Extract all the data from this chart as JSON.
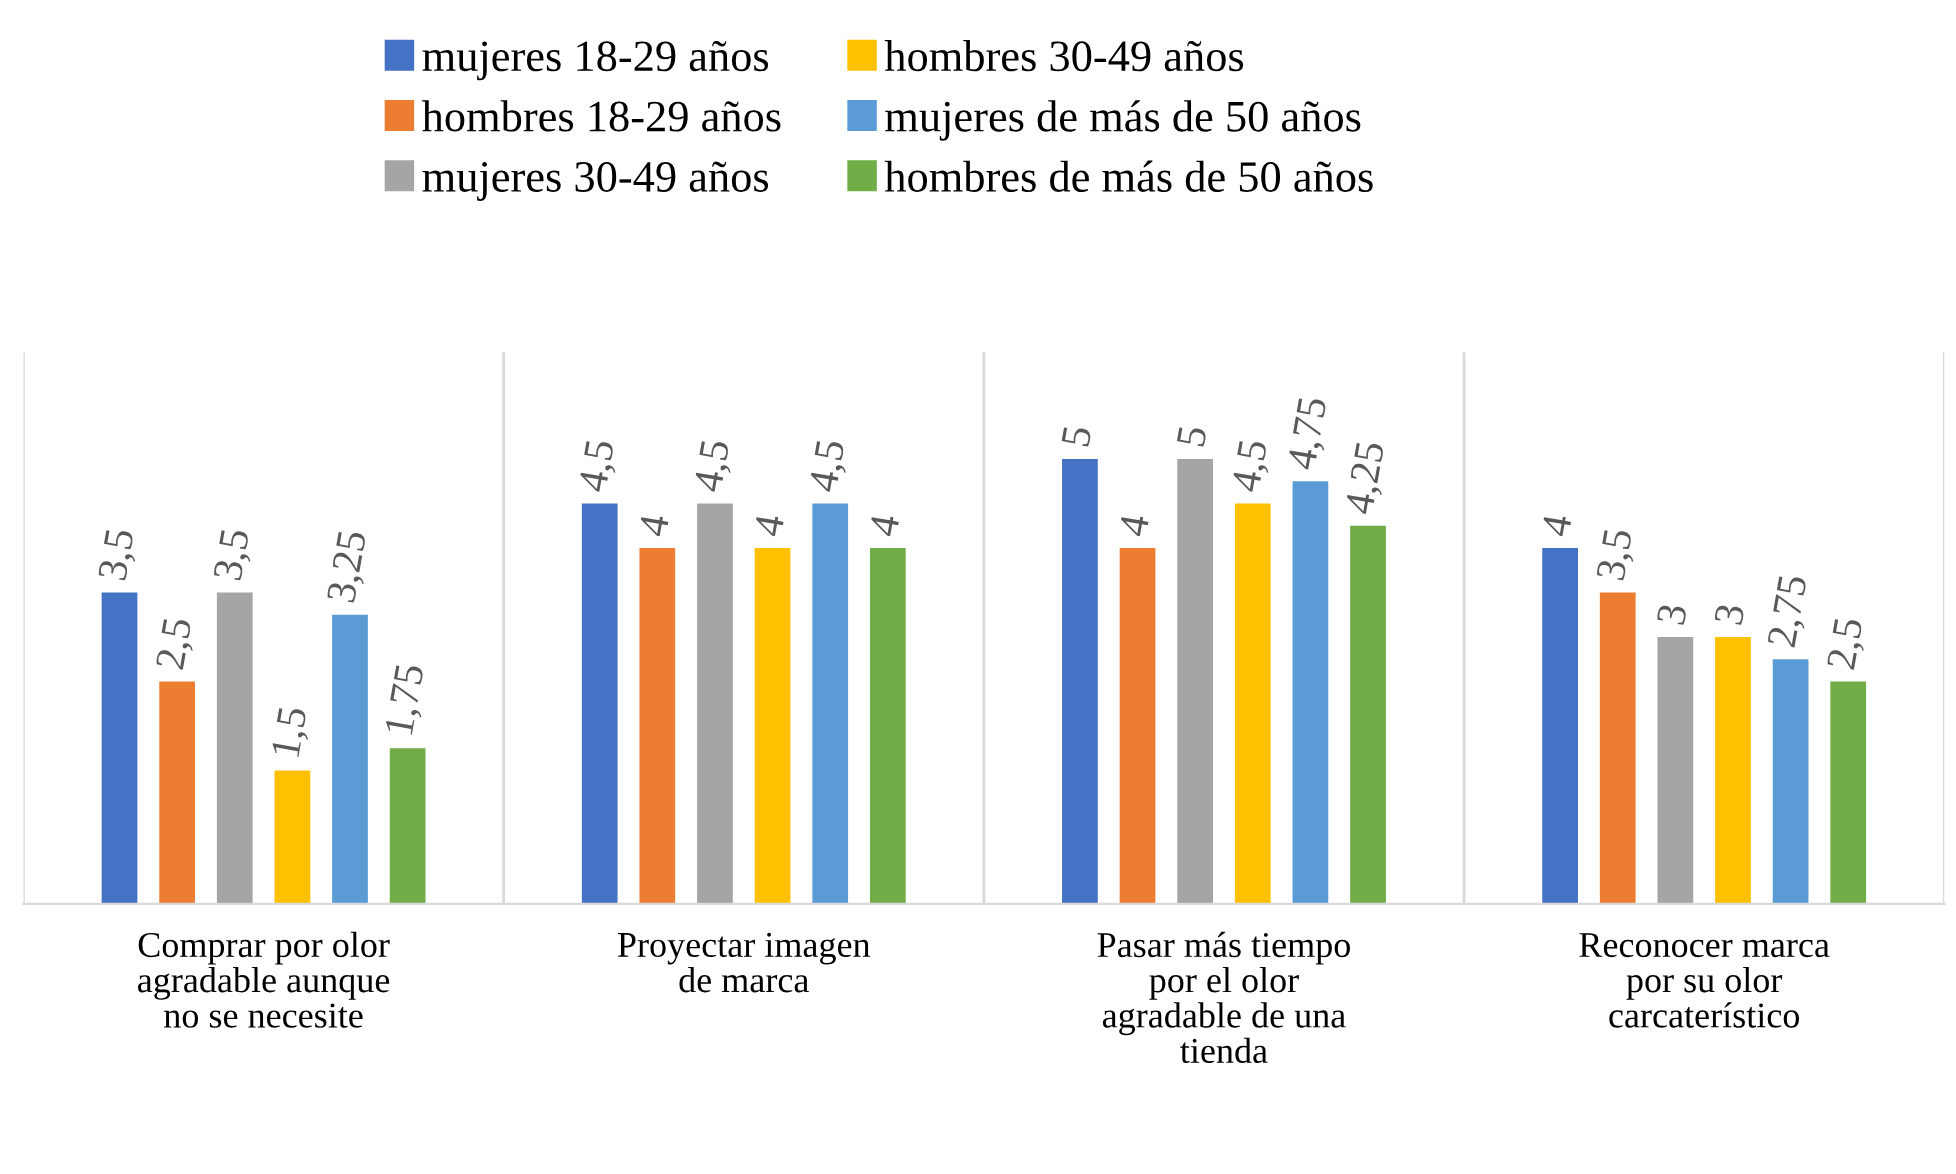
{
  "chart_data": {
    "type": "bar",
    "categories": [
      "Comprar por olor agradable aunque no se necesite",
      "Proyectar imagen de marca",
      "Pasar más tiempo por el olor agradable de una tienda",
      "Reconocer marca por su olor carcaterístico"
    ],
    "series": [
      {
        "name": "mujeres 18-29 años",
        "color": "#4472c4",
        "values": [
          3.5,
          4.5,
          5,
          4
        ],
        "value_labels": [
          "3,5",
          "4,5",
          "5",
          "4"
        ]
      },
      {
        "name": "hombres 18-29 años",
        "color": "#ed7d31",
        "values": [
          2.5,
          4,
          4,
          3.5
        ],
        "value_labels": [
          "2,5",
          "4",
          "4",
          "3,5"
        ]
      },
      {
        "name": "mujeres 30-49 años",
        "color": "#a5a5a5",
        "values": [
          3.5,
          4.5,
          5,
          3
        ],
        "value_labels": [
          "3,5",
          "4,5",
          "5",
          "3"
        ]
      },
      {
        "name": "hombres 30-49 años",
        "color": "#ffc000",
        "values": [
          1.5,
          4,
          4.5,
          3
        ],
        "value_labels": [
          "1,5",
          "4",
          "4,5",
          "3"
        ]
      },
      {
        "name": "mujeres de más de 50 años",
        "color": "#5b9bd5",
        "values": [
          3.25,
          4.5,
          4.75,
          2.75
        ],
        "value_labels": [
          "3,25",
          "4,5",
          "4,75",
          "2,75"
        ]
      },
      {
        "name": "hombres de más de 50 años",
        "color": "#70ad47",
        "values": [
          1.75,
          4,
          4.25,
          2.5
        ],
        "value_labels": [
          "1,75",
          "4",
          "4,25",
          "2,5"
        ]
      }
    ],
    "legend": "top",
    "grid": "x",
    "tick_labels": "x"
  }
}
